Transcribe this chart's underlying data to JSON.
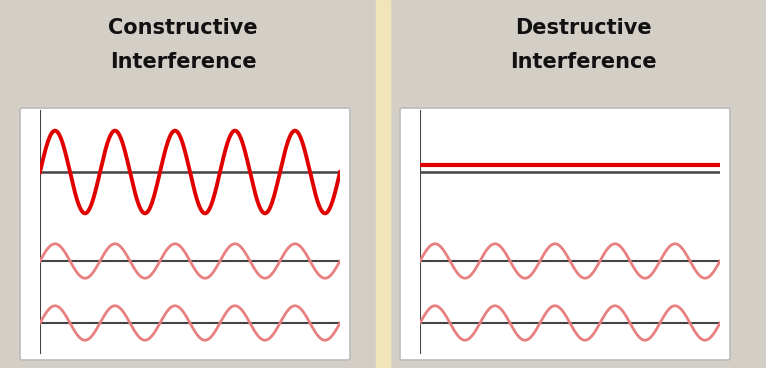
{
  "bg_color": "#d3cfc7",
  "panel_bg": "#ffffff",
  "divider_color": "#f0e4b8",
  "title_left_line1": "Constructive",
  "title_left_line2": "Interference",
  "title_right_line1": "Destructive",
  "title_right_line2": "Interference",
  "title_color": "#111111",
  "title_fontsize": 15,
  "wave_color_bright": "#e00000",
  "wave_color_light": "#e88080",
  "baseline_color": "#444444",
  "axis_color": "#444444",
  "wave_amp_large": 1.0,
  "wave_amp_small": 0.5,
  "wave_periods": 5.0,
  "fig_w": 7.66,
  "fig_h": 3.68,
  "dpi": 100
}
